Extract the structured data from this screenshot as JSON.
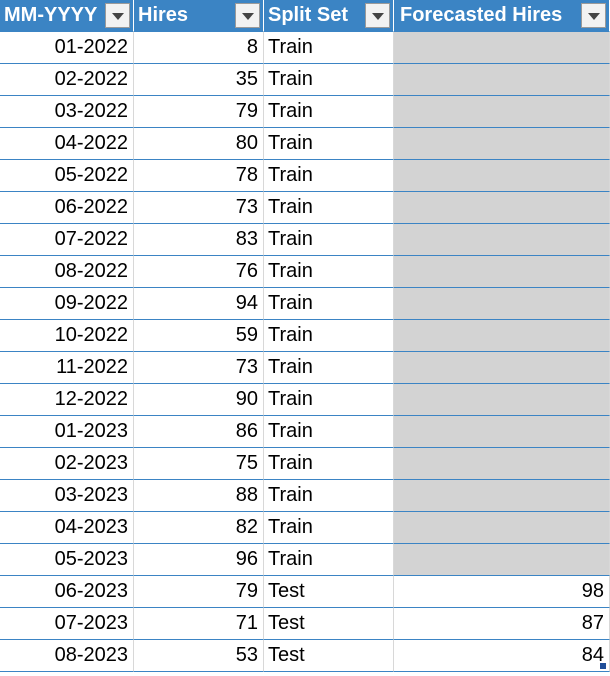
{
  "table": {
    "columns": [
      "MM-YYYY",
      "Hires",
      "Split Set",
      "Forecasted Hires"
    ],
    "rows": [
      {
        "month": "01-2022",
        "hires": "8",
        "split": "Train",
        "forecast": ""
      },
      {
        "month": "02-2022",
        "hires": "35",
        "split": "Train",
        "forecast": ""
      },
      {
        "month": "03-2022",
        "hires": "79",
        "split": "Train",
        "forecast": ""
      },
      {
        "month": "04-2022",
        "hires": "80",
        "split": "Train",
        "forecast": ""
      },
      {
        "month": "05-2022",
        "hires": "78",
        "split": "Train",
        "forecast": ""
      },
      {
        "month": "06-2022",
        "hires": "73",
        "split": "Train",
        "forecast": ""
      },
      {
        "month": "07-2022",
        "hires": "83",
        "split": "Train",
        "forecast": ""
      },
      {
        "month": "08-2022",
        "hires": "76",
        "split": "Train",
        "forecast": ""
      },
      {
        "month": "09-2022",
        "hires": "94",
        "split": "Train",
        "forecast": ""
      },
      {
        "month": "10-2022",
        "hires": "59",
        "split": "Train",
        "forecast": ""
      },
      {
        "month": "11-2022",
        "hires": "73",
        "split": "Train",
        "forecast": ""
      },
      {
        "month": "12-2022",
        "hires": "90",
        "split": "Train",
        "forecast": ""
      },
      {
        "month": "01-2023",
        "hires": "86",
        "split": "Train",
        "forecast": ""
      },
      {
        "month": "02-2023",
        "hires": "75",
        "split": "Train",
        "forecast": ""
      },
      {
        "month": "03-2023",
        "hires": "88",
        "split": "Train",
        "forecast": ""
      },
      {
        "month": "04-2023",
        "hires": "82",
        "split": "Train",
        "forecast": ""
      },
      {
        "month": "05-2023",
        "hires": "96",
        "split": "Train",
        "forecast": ""
      },
      {
        "month": "06-2023",
        "hires": "79",
        "split": "Test",
        "forecast": "98"
      },
      {
        "month": "07-2023",
        "hires": "71",
        "split": "Test",
        "forecast": "87"
      },
      {
        "month": "08-2023",
        "hires": "53",
        "split": "Test",
        "forecast": "84"
      }
    ]
  },
  "colors": {
    "header_bg": "#3b84c4",
    "header_text": "#ffffff",
    "empty_forecast_fill": "#d3d3d3",
    "border": "#3b84c4"
  },
  "icons": {
    "filter": "dropdown-filter-icon"
  }
}
